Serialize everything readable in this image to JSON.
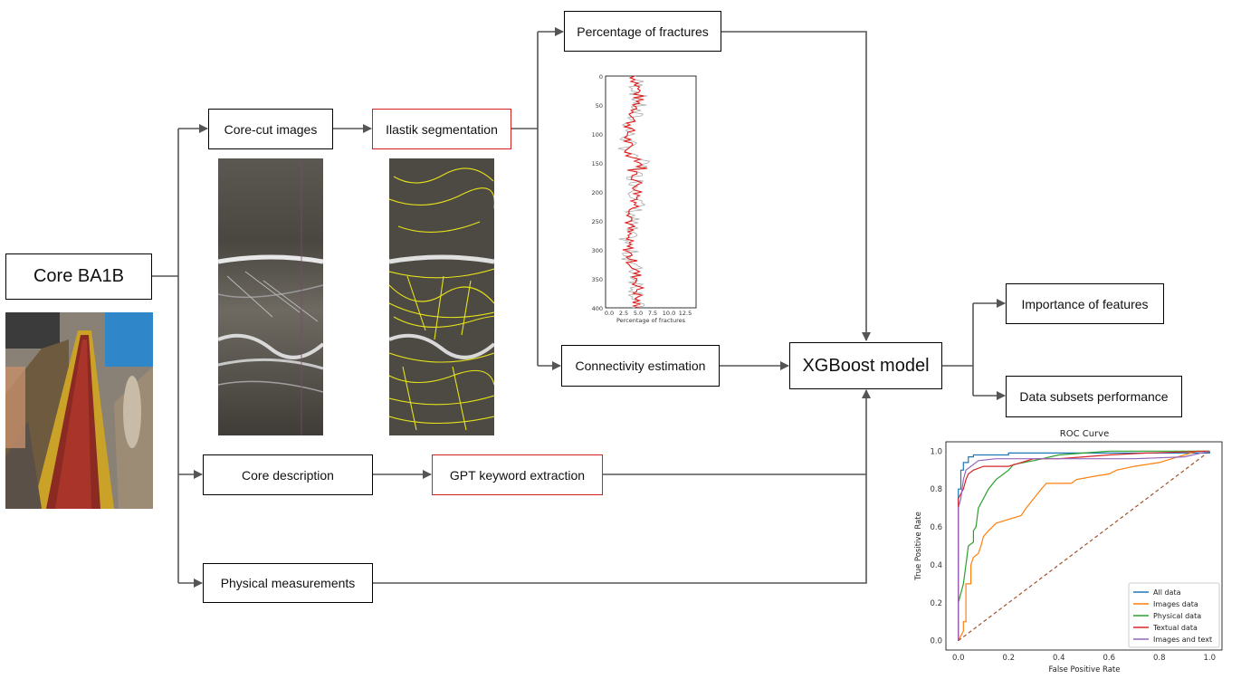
{
  "nodes": {
    "core": "Core BA1B",
    "core_cut": "Core-cut images",
    "ilastik": "Ilastik segmentation",
    "pct_fractures": "Percentage of fractures",
    "connectivity": "Connectivity estimation",
    "xgboost": "XGBoost model",
    "importance": "Importance of features",
    "subsets": "Data subsets performance",
    "core_desc": "Core description",
    "gpt": "GPT keyword extraction",
    "physical": "Physical measurements"
  },
  "colors": {
    "box_border": "#000000",
    "highlight_border": "#d21f1f",
    "arrow": "#555555"
  },
  "fracture_plot": {
    "xlabel": "Percentage of fractures",
    "x_ticks": [
      "0.0",
      "2.5",
      "5.0",
      "7.5",
      "10.0",
      "12.5"
    ],
    "y_ticks": [
      "0",
      "50",
      "100",
      "150",
      "200",
      "250",
      "300",
      "350",
      "400"
    ]
  },
  "chart_data": {
    "type": "line",
    "title": "ROC Curve",
    "xlabel": "False Positive Rate",
    "ylabel": "True Positive Rate",
    "xlim": [
      0,
      1
    ],
    "ylim": [
      0,
      1
    ],
    "x_ticks": [
      "0.0",
      "0.2",
      "0.4",
      "0.6",
      "0.8",
      "1.0"
    ],
    "y_ticks": [
      "0.0",
      "0.2",
      "0.4",
      "0.6",
      "0.8",
      "1.0"
    ],
    "legend_position": "lower-right",
    "series": [
      {
        "name": "All data",
        "color": "#1f77b4",
        "points": [
          [
            0,
            0
          ],
          [
            0,
            0.8
          ],
          [
            0.01,
            0.8
          ],
          [
            0.01,
            0.9
          ],
          [
            0.02,
            0.9
          ],
          [
            0.02,
            0.94
          ],
          [
            0.04,
            0.94
          ],
          [
            0.04,
            0.97
          ],
          [
            0.06,
            0.97
          ],
          [
            0.06,
            0.98
          ],
          [
            0.2,
            0.98
          ],
          [
            0.2,
            0.99
          ],
          [
            1,
            0.99
          ],
          [
            1,
            1
          ]
        ]
      },
      {
        "name": "Images data",
        "color": "#ff7f0e",
        "points": [
          [
            0,
            0
          ],
          [
            0.02,
            0.05
          ],
          [
            0.02,
            0.1
          ],
          [
            0.03,
            0.1
          ],
          [
            0.03,
            0.3
          ],
          [
            0.05,
            0.3
          ],
          [
            0.05,
            0.4
          ],
          [
            0.06,
            0.44
          ],
          [
            0.08,
            0.46
          ],
          [
            0.09,
            0.5
          ],
          [
            0.1,
            0.55
          ],
          [
            0.12,
            0.58
          ],
          [
            0.15,
            0.62
          ],
          [
            0.2,
            0.64
          ],
          [
            0.25,
            0.66
          ],
          [
            0.27,
            0.7
          ],
          [
            0.3,
            0.75
          ],
          [
            0.33,
            0.8
          ],
          [
            0.35,
            0.83
          ],
          [
            0.45,
            0.83
          ],
          [
            0.47,
            0.85
          ],
          [
            0.55,
            0.87
          ],
          [
            0.6,
            0.88
          ],
          [
            0.63,
            0.9
          ],
          [
            0.7,
            0.92
          ],
          [
            0.8,
            0.94
          ],
          [
            0.85,
            0.96
          ],
          [
            0.9,
            0.98
          ],
          [
            0.95,
            1.0
          ],
          [
            1,
            1
          ]
        ]
      },
      {
        "name": "Physical data",
        "color": "#2ca02c",
        "points": [
          [
            0,
            0
          ],
          [
            0,
            0.2
          ],
          [
            0.01,
            0.25
          ],
          [
            0.02,
            0.3
          ],
          [
            0.03,
            0.4
          ],
          [
            0.04,
            0.5
          ],
          [
            0.06,
            0.52
          ],
          [
            0.06,
            0.58
          ],
          [
            0.07,
            0.6
          ],
          [
            0.08,
            0.7
          ],
          [
            0.1,
            0.75
          ],
          [
            0.12,
            0.8
          ],
          [
            0.15,
            0.85
          ],
          [
            0.18,
            0.88
          ],
          [
            0.2,
            0.9
          ],
          [
            0.22,
            0.93
          ],
          [
            0.3,
            0.95
          ],
          [
            0.4,
            0.98
          ],
          [
            0.5,
            0.99
          ],
          [
            0.6,
            1.0
          ],
          [
            1,
            1
          ]
        ]
      },
      {
        "name": "Textual data",
        "color": "#d62728",
        "points": [
          [
            0,
            0
          ],
          [
            0,
            0.75
          ],
          [
            0.02,
            0.8
          ],
          [
            0.03,
            0.85
          ],
          [
            0.04,
            0.88
          ],
          [
            0.06,
            0.9
          ],
          [
            0.1,
            0.92
          ],
          [
            0.2,
            0.92
          ],
          [
            0.25,
            0.94
          ],
          [
            0.3,
            0.96
          ],
          [
            0.4,
            0.96
          ],
          [
            0.5,
            0.97
          ],
          [
            0.6,
            0.98
          ],
          [
            0.75,
            0.99
          ],
          [
            1,
            1
          ]
        ]
      },
      {
        "name": "Images and text",
        "color": "#9467bd",
        "points": [
          [
            0,
            0
          ],
          [
            0,
            0.7
          ],
          [
            0.01,
            0.75
          ],
          [
            0.02,
            0.85
          ],
          [
            0.03,
            0.9
          ],
          [
            0.05,
            0.92
          ],
          [
            0.08,
            0.95
          ],
          [
            0.15,
            0.96
          ],
          [
            0.3,
            0.96
          ],
          [
            0.5,
            0.96
          ],
          [
            0.7,
            0.96
          ],
          [
            0.9,
            0.97
          ],
          [
            1,
            1
          ]
        ]
      },
      {
        "name": "",
        "color": "#a0522d",
        "dashed": true,
        "points": [
          [
            0,
            0
          ],
          [
            1,
            1
          ]
        ]
      }
    ]
  }
}
